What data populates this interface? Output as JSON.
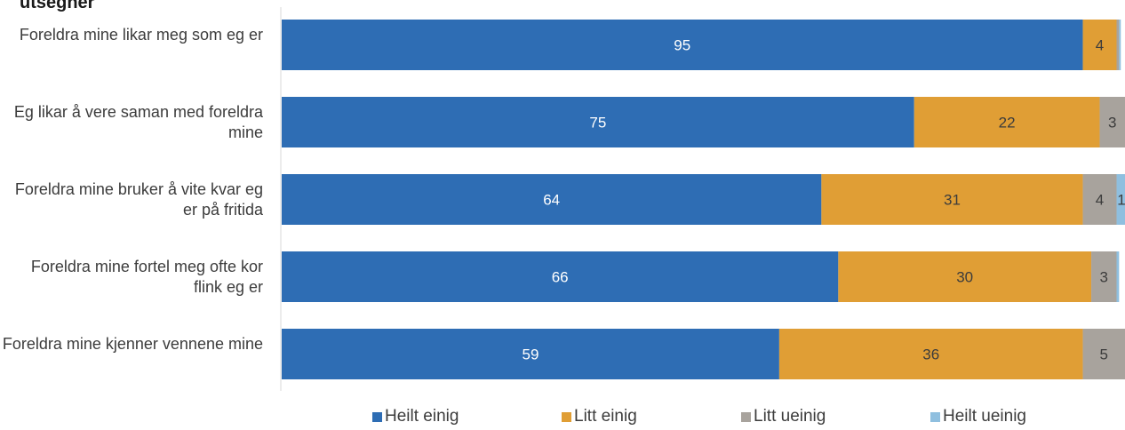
{
  "title": "utsegner",
  "chart_data": {
    "type": "bar",
    "orientation": "horizontal",
    "stacked": true,
    "percent": true,
    "categories": [
      "Foreldra mine likar meg som eg er",
      "Eg likar å vere saman med foreldra mine",
      "Foreldra mine bruker å vite kvar eg er på fritida",
      "Foreldra mine fortel meg ofte kor flink eg er",
      "Foreldra mine kjenner vennene mine"
    ],
    "series": [
      {
        "name": "Heilt einig",
        "color": "#2e6db4",
        "values": [
          95,
          75,
          64,
          66,
          59
        ]
      },
      {
        "name": "Litt einig",
        "color": "#e09e35",
        "values": [
          4,
          22,
          31,
          30,
          36
        ]
      },
      {
        "name": "Litt ueinig",
        "color": "#a8a39d",
        "values": [
          0.3,
          3,
          4,
          3,
          5
        ]
      },
      {
        "name": "Heilt ueinig",
        "color": "#8fbfdf",
        "values": [
          0.2,
          0.3,
          1,
          0.3,
          0.2
        ]
      }
    ],
    "data_labels": [
      [
        "95",
        "75",
        "64",
        "66",
        "59"
      ],
      [
        "4",
        "22",
        "31",
        "30",
        "36"
      ],
      [
        "",
        "3",
        "4",
        "3",
        "5"
      ],
      [
        "",
        "",
        "1",
        "",
        ""
      ]
    ],
    "xlim": [
      0,
      100
    ],
    "grid": false,
    "legend_position": "bottom"
  }
}
